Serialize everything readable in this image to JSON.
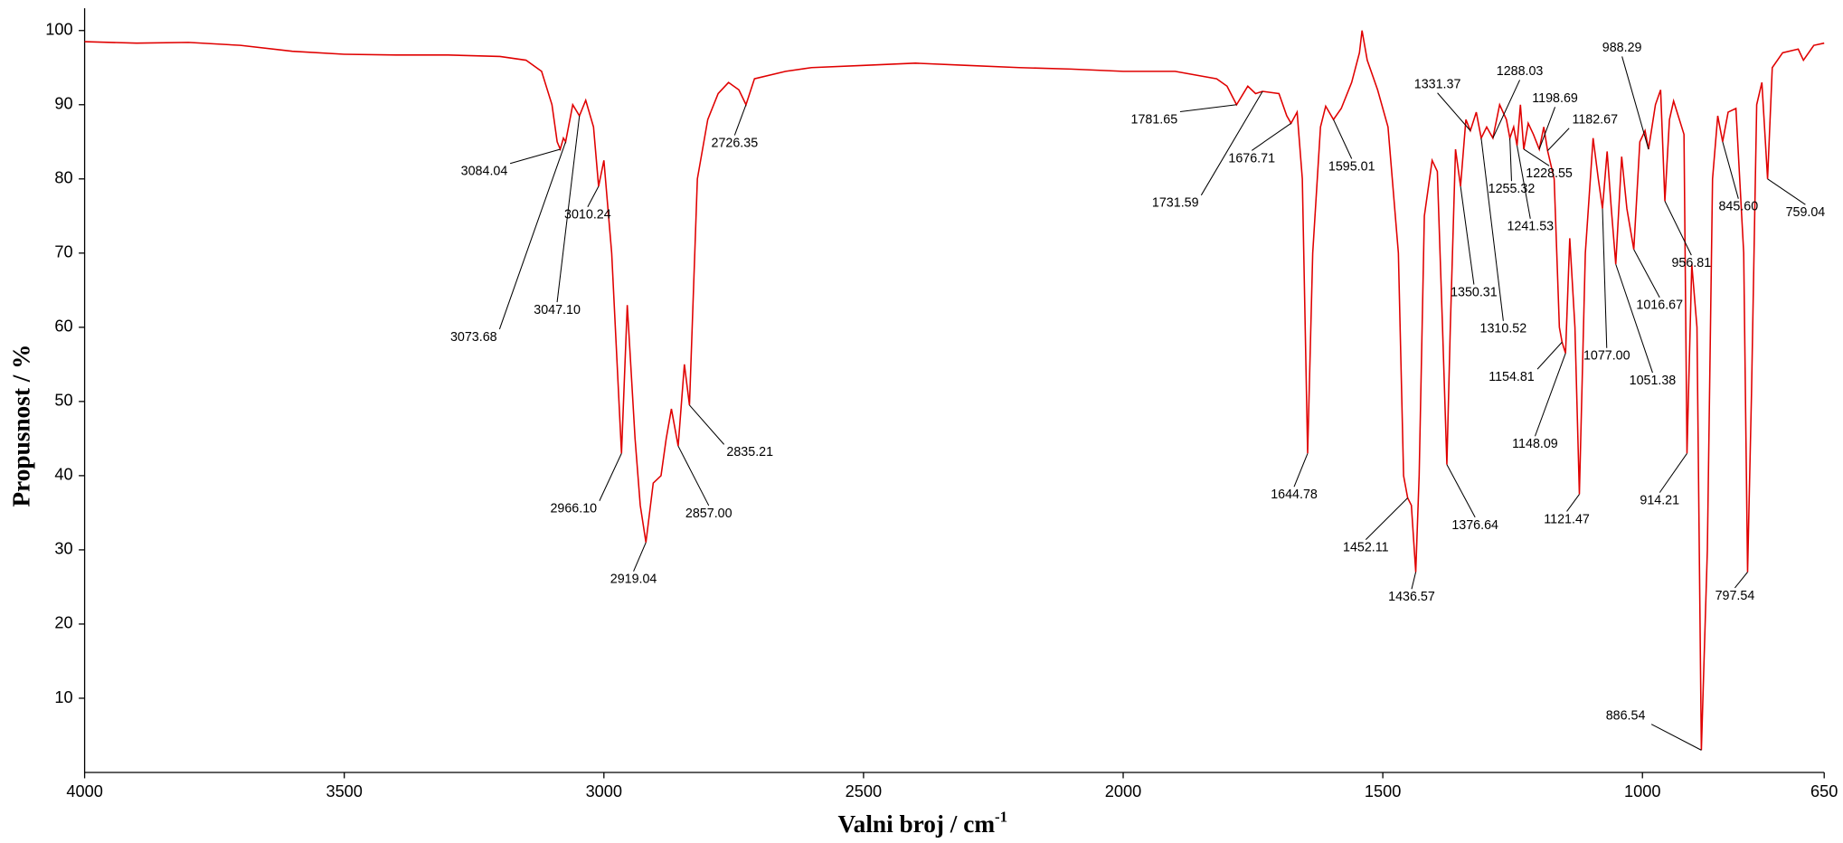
{
  "chart_data": {
    "type": "line",
    "x_label": {
      "text": "Valni broj / cm",
      "superscript": "-1"
    },
    "y_label": "Propusnost / %",
    "color": "#e00000",
    "xlim": [
      4000,
      650
    ],
    "ylim": [
      0,
      103
    ],
    "xticks": [
      4000,
      3500,
      3000,
      2500,
      2000,
      1500,
      1000,
      650
    ],
    "yticks": [
      10,
      20,
      30,
      40,
      50,
      60,
      70,
      80,
      90,
      100
    ],
    "x": [
      4000,
      3900,
      3800,
      3700,
      3600,
      3500,
      3400,
      3300,
      3200,
      3150,
      3120,
      3100,
      3090,
      3084.04,
      3078,
      3073.68,
      3060,
      3047.1,
      3035,
      3020,
      3010.24,
      3000,
      2985,
      2966.1,
      2955,
      2940,
      2930,
      2919.04,
      2905,
      2890,
      2880,
      2870,
      2857,
      2845,
      2835.21,
      2820,
      2800,
      2780,
      2760,
      2740,
      2726.35,
      2710,
      2650,
      2600,
      2500,
      2400,
      2300,
      2200,
      2100,
      2000,
      1900,
      1820,
      1800,
      1781.65,
      1760,
      1745,
      1731.59,
      1700,
      1685,
      1676.71,
      1665,
      1655,
      1644.78,
      1635,
      1620,
      1610,
      1595.01,
      1580,
      1560,
      1545,
      1540,
      1530,
      1510,
      1490,
      1470,
      1460,
      1452.11,
      1445,
      1436.57,
      1430,
      1420,
      1405,
      1395,
      1385,
      1376.64,
      1370,
      1360,
      1350.31,
      1340,
      1331.37,
      1320,
      1310.52,
      1300,
      1288.03,
      1275,
      1262,
      1255.32,
      1248,
      1241.53,
      1235,
      1228.55,
      1220,
      1210,
      1198.69,
      1190,
      1182.67,
      1170,
      1160,
      1154.81,
      1148.09,
      1140,
      1130,
      1121.47,
      1110,
      1095,
      1085,
      1077,
      1068,
      1060,
      1051.38,
      1040,
      1030,
      1016.67,
      1005,
      995,
      988.29,
      975,
      965,
      956.81,
      948,
      940,
      920,
      914.21,
      905,
      895,
      886.54,
      875,
      865,
      855,
      845.6,
      835,
      820,
      805,
      797.54,
      790,
      780,
      770,
      759.04,
      750,
      730,
      700,
      690,
      670,
      650
    ],
    "values": [
      98.5,
      98.3,
      98.4,
      98,
      97.2,
      96.8,
      96.7,
      96.7,
      96.5,
      96,
      94.5,
      90,
      85,
      84,
      85.5,
      85,
      90,
      88.5,
      90.6,
      87,
      79,
      82.5,
      70,
      43,
      63,
      45,
      36,
      31,
      39,
      40,
      45,
      49,
      44,
      55,
      49.5,
      80,
      88,
      91.5,
      93,
      92,
      90,
      93.5,
      94.5,
      95,
      95.3,
      95.6,
      95.3,
      95,
      94.8,
      94.5,
      94.5,
      93.5,
      92.5,
      90,
      92.5,
      91.5,
      91.8,
      91.5,
      88.5,
      87.5,
      89,
      80,
      43,
      70,
      87,
      89.8,
      88,
      89.5,
      93,
      97,
      100,
      96,
      92,
      87,
      70,
      40,
      37,
      36,
      27,
      40,
      75,
      82.5,
      81,
      60,
      41.5,
      60,
      84,
      79,
      88,
      86.5,
      89,
      85.5,
      87,
      85.5,
      90,
      88,
      85.5,
      87,
      84.5,
      90,
      84,
      87.5,
      86,
      84,
      87,
      83.8,
      80,
      60,
      58,
      56.5,
      72,
      60,
      37.5,
      70,
      85.5,
      80,
      76,
      83.7,
      76,
      68.5,
      83,
      76,
      70.5,
      85,
      86.5,
      84,
      90,
      92,
      77,
      88,
      90.5,
      86,
      43,
      68.5,
      60,
      3,
      30,
      80,
      88.5,
      85,
      89,
      89.5,
      70,
      27,
      51,
      90,
      93,
      80,
      95,
      97,
      97.5,
      96,
      98,
      98.3
    ],
    "annotations": [
      {
        "x": 3084.04,
        "y": 84,
        "label": "3084.04"
      },
      {
        "x": 3073.68,
        "y": 85,
        "label": "3073.68"
      },
      {
        "x": 3047.1,
        "y": 88.5,
        "label": "3047.10"
      },
      {
        "x": 3010.24,
        "y": 79,
        "label": "3010.24"
      },
      {
        "x": 2966.1,
        "y": 43,
        "label": "2966.10"
      },
      {
        "x": 2919.04,
        "y": 31,
        "label": "2919.04"
      },
      {
        "x": 2857,
        "y": 44,
        "label": "2857.00"
      },
      {
        "x": 2835.21,
        "y": 49.5,
        "label": "2835.21"
      },
      {
        "x": 2726.35,
        "y": 90,
        "label": "2726.35"
      },
      {
        "x": 1781.65,
        "y": 90,
        "label": "1781.65"
      },
      {
        "x": 1731.59,
        "y": 91.8,
        "label": "1731.59"
      },
      {
        "x": 1676.71,
        "y": 87.5,
        "label": "1676.71"
      },
      {
        "x": 1595.01,
        "y": 88,
        "label": "1595.01"
      },
      {
        "x": 1644.78,
        "y": 43,
        "label": "1644.78"
      },
      {
        "x": 1452.11,
        "y": 37,
        "label": "1452.11"
      },
      {
        "x": 1436.57,
        "y": 27,
        "label": "1436.57"
      },
      {
        "x": 1376.64,
        "y": 41.5,
        "label": "1376.64"
      },
      {
        "x": 1350.31,
        "y": 79,
        "label": "1350.31"
      },
      {
        "x": 1331.37,
        "y": 86.5,
        "label": "1331.37"
      },
      {
        "x": 1310.52,
        "y": 85.5,
        "label": "1310.52"
      },
      {
        "x": 1288.03,
        "y": 85.5,
        "label": "1288.03"
      },
      {
        "x": 1255.32,
        "y": 85.5,
        "label": "1255.32"
      },
      {
        "x": 1241.53,
        "y": 84.5,
        "label": "1241.53"
      },
      {
        "x": 1228.55,
        "y": 84,
        "label": "1228.55"
      },
      {
        "x": 1198.69,
        "y": 84,
        "label": "1198.69"
      },
      {
        "x": 1182.67,
        "y": 83.8,
        "label": "1182.67"
      },
      {
        "x": 1154.81,
        "y": 58,
        "label": "1154.81"
      },
      {
        "x": 1148.09,
        "y": 56.5,
        "label": "1148.09"
      },
      {
        "x": 1121.47,
        "y": 37.5,
        "label": "1121.47"
      },
      {
        "x": 1077,
        "y": 76,
        "label": "1077.00"
      },
      {
        "x": 1051.38,
        "y": 68.5,
        "label": "1051.38"
      },
      {
        "x": 1016.67,
        "y": 70.5,
        "label": "1016.67"
      },
      {
        "x": 988.29,
        "y": 84,
        "label": "988.29"
      },
      {
        "x": 956.81,
        "y": 77,
        "label": "956.81"
      },
      {
        "x": 914.21,
        "y": 43,
        "label": "914.21"
      },
      {
        "x": 886.54,
        "y": 3,
        "label": "886.54"
      },
      {
        "x": 845.6,
        "y": 85,
        "label": "845.60"
      },
      {
        "x": 797.54,
        "y": 27,
        "label": "797.54"
      },
      {
        "x": 759.04,
        "y": 80,
        "label": "759.04"
      }
    ]
  }
}
